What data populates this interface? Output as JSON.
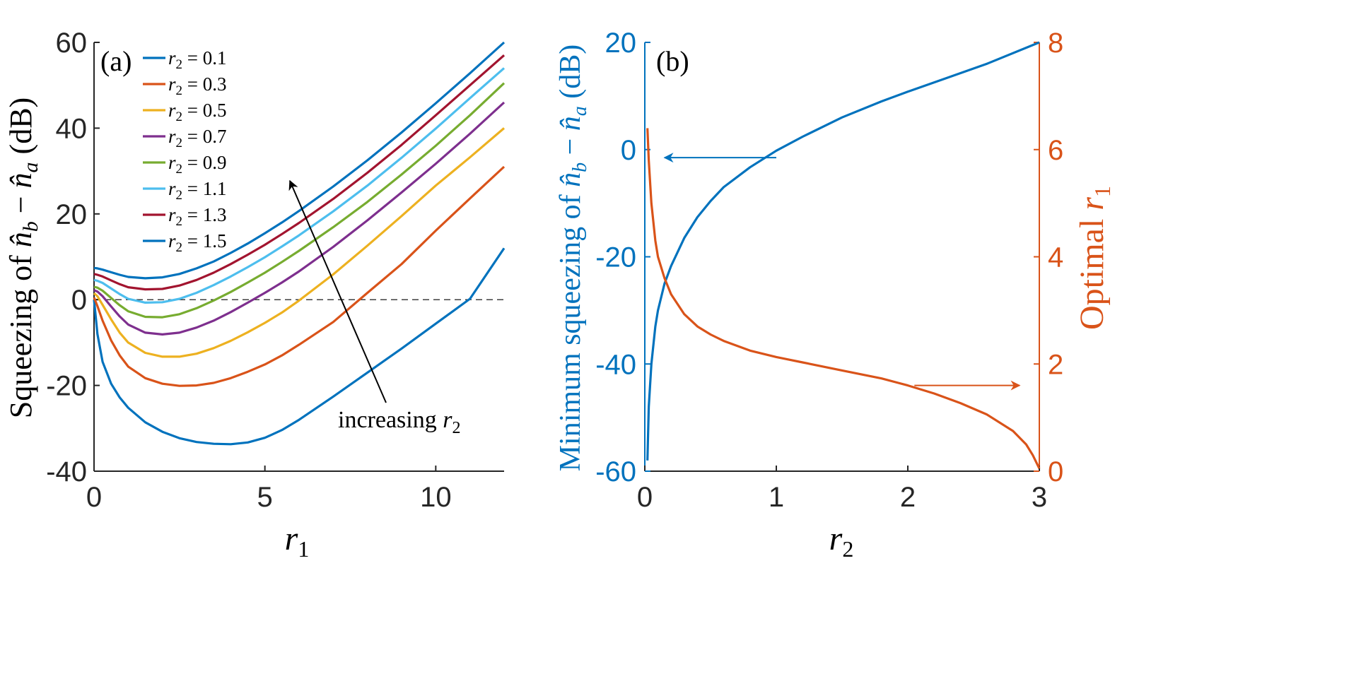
{
  "chart_data": [
    {
      "panel_label": "(a)",
      "type": "line",
      "xlabel": "r1",
      "xlabel_base": "r",
      "xlabel_sub": "1",
      "ylabel": "Squeezing of n̂b − n̂a (dB)",
      "ylabel_parts": {
        "pre": "Squeezing of ",
        "base1": "n̂",
        "sub1": "b",
        "op": " − ",
        "base2": "n̂",
        "sub2": "a",
        "post": " (dB)"
      },
      "xlim": [
        0,
        12
      ],
      "ylim": [
        -40,
        60
      ],
      "xticks": [
        0,
        5,
        10
      ],
      "xtick_labels": [
        "0",
        "5",
        "10"
      ],
      "yticks": [
        -40,
        -20,
        0,
        20,
        40,
        60
      ],
      "ytick_labels": [
        "-40",
        "-20",
        "0",
        "20",
        "40",
        "60"
      ],
      "reference_line": {
        "y": 0,
        "style": "dashed"
      },
      "legend_location": "top-left",
      "annotation": {
        "text": "increasing r2",
        "text_main": "increasing ",
        "text_math": "r",
        "text_sub": "2",
        "arrow": "points toward increasing r2 curves"
      },
      "x": [
        0,
        0.1,
        0.25,
        0.5,
        0.75,
        1,
        1.5,
        2,
        2.5,
        3,
        3.5,
        4,
        4.5,
        5,
        5.5,
        6,
        7,
        8,
        9,
        10,
        11,
        12
      ],
      "series": [
        {
          "name": "r2 = 0.1",
          "label_math": "r",
          "label_sub": "2",
          "label_val": " = 0.1",
          "color": "#0072BD",
          "values": [
            0,
            -8,
            -14.5,
            -19.6,
            -22.8,
            -25.2,
            -28.6,
            -30.8,
            -32.3,
            -33.2,
            -33.6,
            -33.7,
            -33.3,
            -32.2,
            -30.4,
            -28.0,
            -22.6,
            -17.0,
            -11.4,
            -5.6,
            0.2,
            12
          ]
        },
        {
          "name": "r2 = 0.3",
          "label_math": "r",
          "label_sub": "2",
          "label_val": " = 0.3",
          "color": "#D95319",
          "values": [
            0.5,
            -1.5,
            -4.9,
            -9.5,
            -13.0,
            -15.6,
            -18.3,
            -19.6,
            -20.1,
            -20.0,
            -19.4,
            -18.3,
            -16.8,
            -15.1,
            -13.0,
            -10.5,
            -5.2,
            1.6,
            8.3,
            16.1,
            23.6,
            31
          ]
        },
        {
          "name": "r2 = 0.5",
          "label_math": "r",
          "label_sub": "2",
          "label_val": " = 0.5",
          "color": "#EDB120",
          "values": [
            1.5,
            0.8,
            -1.2,
            -4.6,
            -7.7,
            -10.0,
            -12.4,
            -13.3,
            -13.3,
            -12.6,
            -11.3,
            -9.6,
            -7.6,
            -5.4,
            -3.0,
            -0.2,
            5.9,
            12.6,
            19.5,
            26.6,
            33.2,
            40
          ]
        },
        {
          "name": "r2 = 0.7",
          "label_math": "r",
          "label_sub": "2",
          "label_val": " = 0.7",
          "color": "#7E2F8E",
          "values": [
            2.2,
            1.9,
            0.8,
            -1.6,
            -3.9,
            -5.8,
            -7.7,
            -8.1,
            -7.7,
            -6.5,
            -4.9,
            -2.9,
            -0.7,
            1.6,
            4.0,
            6.6,
            12.3,
            18.5,
            25.0,
            31.7,
            38.7,
            46
          ]
        },
        {
          "name": "r2 = 0.9",
          "label_math": "r",
          "label_sub": "2",
          "label_val": " = 0.9",
          "color": "#77AC30",
          "values": [
            3.0,
            2.8,
            2.1,
            0.4,
            -1.3,
            -2.7,
            -4.0,
            -4.1,
            -3.4,
            -2.0,
            -0.2,
            1.8,
            4.0,
            6.3,
            8.8,
            11.4,
            16.9,
            22.8,
            29.2,
            35.9,
            43.0,
            50.5
          ]
        },
        {
          "name": "r2 = 1.1",
          "label_math": "r",
          "label_sub": "2",
          "label_val": " = 1.1",
          "color": "#4DBEEE",
          "values": [
            4.6,
            4.4,
            3.9,
            2.6,
            1.3,
            0.2,
            -0.7,
            -0.6,
            0.2,
            1.6,
            3.4,
            5.4,
            7.6,
            9.9,
            12.4,
            15.0,
            20.6,
            26.6,
            33.1,
            39.9,
            47.0,
            54
          ]
        },
        {
          "name": "r2 = 1.3",
          "label_math": "r",
          "label_sub": "2",
          "label_val": " = 1.3",
          "color": "#A2142F",
          "values": [
            6.0,
            5.8,
            5.4,
            4.5,
            3.6,
            2.9,
            2.4,
            2.5,
            3.3,
            4.6,
            6.3,
            8.3,
            10.5,
            12.8,
            15.3,
            17.9,
            23.5,
            29.6,
            36.1,
            43.0,
            50.0,
            57
          ]
        },
        {
          "name": "r2 = 1.5",
          "label_math": "r",
          "label_sub": "2",
          "label_val": " = 1.5",
          "color": "#0072BD",
          "values": [
            7.4,
            7.3,
            7.0,
            6.4,
            5.8,
            5.3,
            5.0,
            5.2,
            6.0,
            7.3,
            8.9,
            10.9,
            13.1,
            15.5,
            18.0,
            20.7,
            26.4,
            32.5,
            39.0,
            45.8,
            52.8,
            60
          ]
        }
      ]
    },
    {
      "panel_label": "(b)",
      "type": "line",
      "xlabel": "r2",
      "xlabel_base": "r",
      "xlabel_sub": "2",
      "ylabel_left": "Minimum squeezing of n̂b − n̂a (dB)",
      "ylabel_left_parts": {
        "pre": "Minimum squeezing of ",
        "base1": "n̂",
        "sub1": "b",
        "op": " − ",
        "base2": "n̂",
        "sub2": "a",
        "post": " (dB)"
      },
      "ylabel_right": "Optimal r1",
      "ylabel_right_parts": {
        "pre": "Optimal ",
        "base": "r",
        "sub": "1"
      },
      "xlim": [
        0,
        3
      ],
      "ylim_left": [
        -60,
        20
      ],
      "ylim_right": [
        0,
        8
      ],
      "xticks": [
        0,
        1,
        2,
        3
      ],
      "xtick_labels": [
        "0",
        "1",
        "2",
        "3"
      ],
      "yticks_left": [
        -60,
        -40,
        -20,
        0,
        20
      ],
      "ytick_labels_left": [
        "-60",
        "-40",
        "-20",
        "0",
        "20"
      ],
      "yticks_right": [
        0,
        2,
        4,
        6,
        8
      ],
      "ytick_labels_right": [
        "0",
        "2",
        "4",
        "6",
        "8"
      ],
      "left_color": "#0072BD",
      "right_color": "#D95319",
      "annotations": [
        {
          "arrow": "left",
          "target_axis": "left",
          "x_from": 1.0,
          "x_to": 0.15,
          "y": -1.5
        },
        {
          "arrow": "right",
          "target_axis": "right",
          "x_from": 2.05,
          "x_to": 2.85,
          "y": 1.6
        }
      ],
      "series": [
        {
          "name": "Minimum squeezing",
          "axis": "left",
          "color": "#0072BD",
          "x": [
            0.02,
            0.03,
            0.05,
            0.08,
            0.1,
            0.15,
            0.2,
            0.3,
            0.4,
            0.5,
            0.6,
            0.8,
            1.0,
            1.2,
            1.5,
            1.8,
            2.0,
            2.3,
            2.6,
            3.0
          ],
          "values": [
            -58,
            -48,
            -40,
            -33,
            -30,
            -25,
            -21.7,
            -16.5,
            -12.6,
            -9.6,
            -7.0,
            -3.3,
            -0.2,
            2.4,
            6.0,
            9.0,
            10.8,
            13.4,
            16.0,
            20
          ]
        },
        {
          "name": "Optimal r1",
          "axis": "right",
          "color": "#D95319",
          "x": [
            0.02,
            0.03,
            0.05,
            0.08,
            0.1,
            0.15,
            0.2,
            0.3,
            0.4,
            0.5,
            0.6,
            0.8,
            1.0,
            1.2,
            1.5,
            1.8,
            2.0,
            2.2,
            2.4,
            2.6,
            2.8,
            2.9,
            2.95,
            3.0
          ],
          "values": [
            6.4,
            5.8,
            5.0,
            4.3,
            4.0,
            3.6,
            3.3,
            2.93,
            2.7,
            2.55,
            2.43,
            2.25,
            2.13,
            2.03,
            1.88,
            1.73,
            1.6,
            1.45,
            1.27,
            1.06,
            0.75,
            0.5,
            0.3,
            0.05
          ]
        }
      ]
    }
  ]
}
